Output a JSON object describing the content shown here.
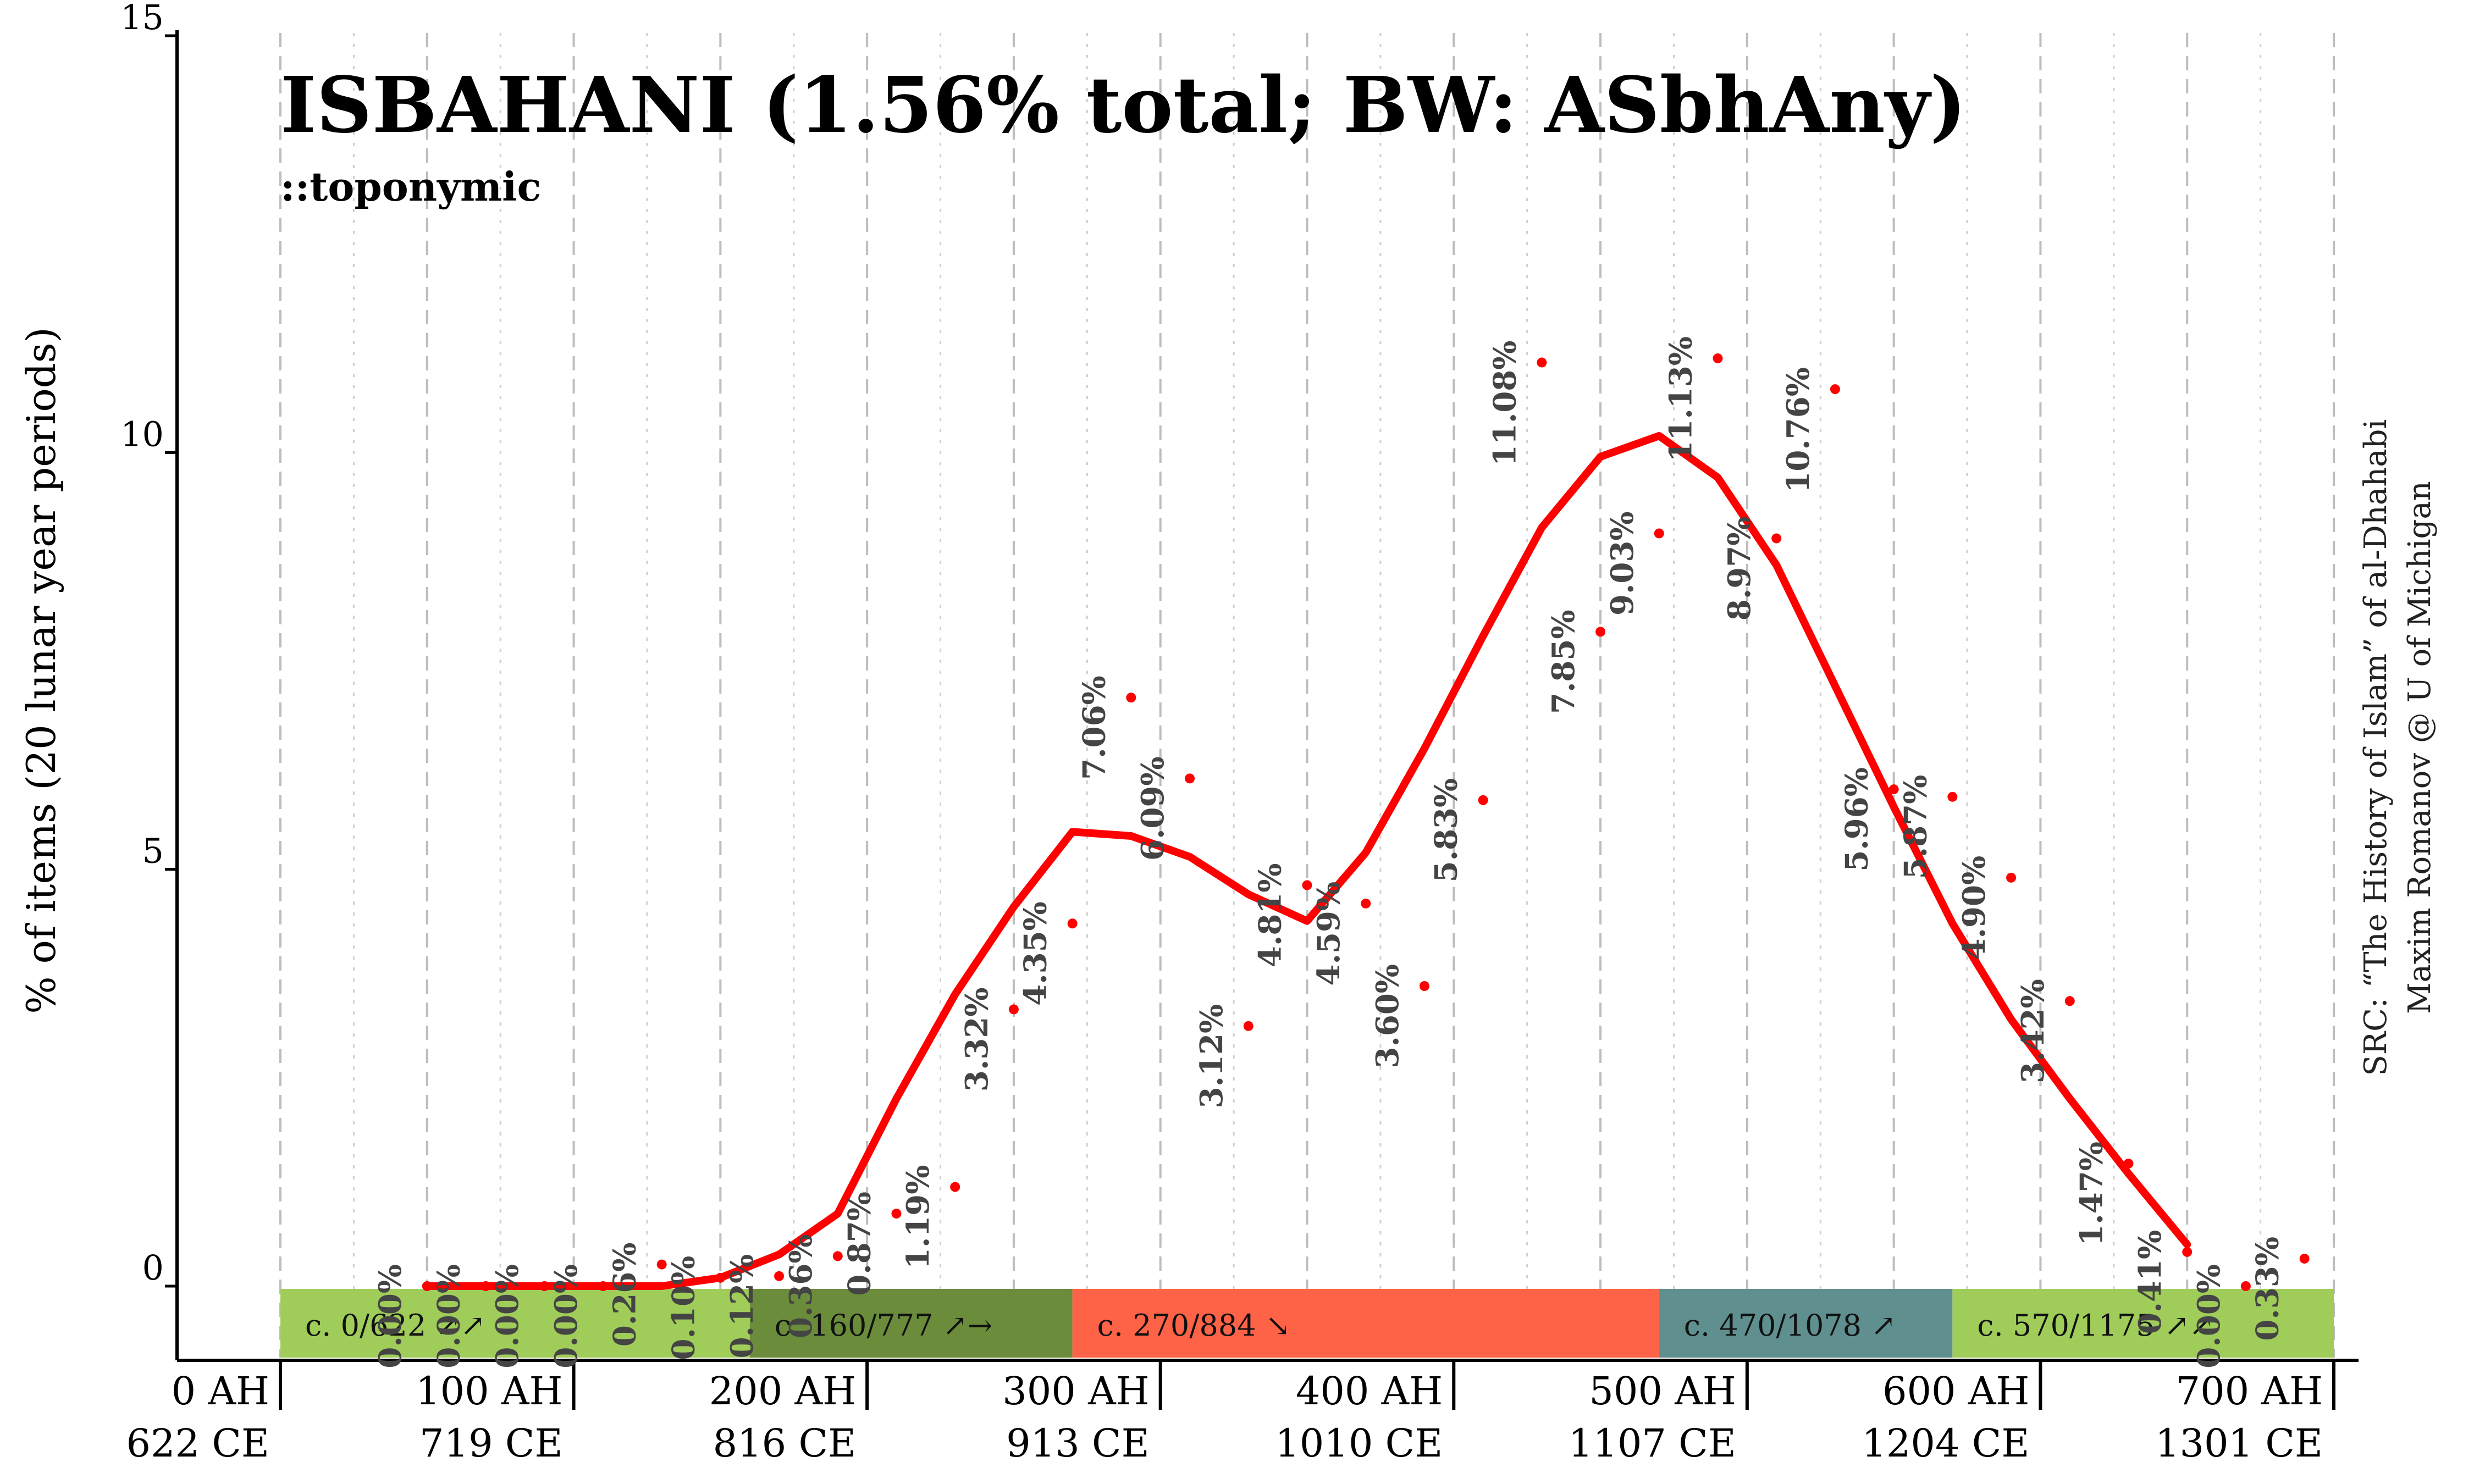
{
  "chart_data": {
    "type": "line",
    "title": "ISBAHANI (1.56% total; BW: ASbhAny)",
    "subtitle": "::toponymic",
    "ylabel": "% of items (20 lunar year periods)",
    "ylim": [
      0,
      15
    ],
    "xlim": [
      0,
      700
    ],
    "y_ticks": [
      {
        "value": 0,
        "label": "0"
      },
      {
        "value": 5,
        "label": "5"
      },
      {
        "value": 10,
        "label": "10"
      },
      {
        "value": 15,
        "label": "15"
      }
    ],
    "x_ticks": [
      {
        "value": 0,
        "ah": "0 AH",
        "ce": "622 CE"
      },
      {
        "value": 100,
        "ah": "100 AH",
        "ce": "719 CE"
      },
      {
        "value": 200,
        "ah": "200 AH",
        "ce": "816 CE"
      },
      {
        "value": 300,
        "ah": "300 AH",
        "ce": "913 CE"
      },
      {
        "value": 400,
        "ah": "400 AH",
        "ce": "1010 CE"
      },
      {
        "value": 500,
        "ah": "500 AH",
        "ce": "1107 CE"
      },
      {
        "value": 600,
        "ah": "600 AH",
        "ce": "1204 CE"
      },
      {
        "value": 700,
        "ah": "700 AH",
        "ce": "1301 CE"
      }
    ],
    "points": [
      {
        "x": 50,
        "y": 0.0,
        "label": "0.00%"
      },
      {
        "x": 70,
        "y": 0.0,
        "label": "0.00%"
      },
      {
        "x": 90,
        "y": 0.0,
        "label": "0.00%"
      },
      {
        "x": 110,
        "y": 0.0,
        "label": "0.00%"
      },
      {
        "x": 130,
        "y": 0.26,
        "label": "0.26%"
      },
      {
        "x": 150,
        "y": 0.1,
        "label": "0.10%"
      },
      {
        "x": 170,
        "y": 0.12,
        "label": "0.12%"
      },
      {
        "x": 190,
        "y": 0.36,
        "label": "0.36%"
      },
      {
        "x": 210,
        "y": 0.87,
        "label": "0.87%"
      },
      {
        "x": 230,
        "y": 1.19,
        "label": "1.19%"
      },
      {
        "x": 250,
        "y": 3.32,
        "label": "3.32%"
      },
      {
        "x": 270,
        "y": 4.35,
        "label": "4.35%"
      },
      {
        "x": 290,
        "y": 7.06,
        "label": "7.06%"
      },
      {
        "x": 310,
        "y": 6.09,
        "label": "6.09%"
      },
      {
        "x": 330,
        "y": 3.12,
        "label": "3.12%"
      },
      {
        "x": 350,
        "y": 4.81,
        "label": "4.81%"
      },
      {
        "x": 370,
        "y": 4.59,
        "label": "4.59%"
      },
      {
        "x": 390,
        "y": 3.6,
        "label": "3.60%"
      },
      {
        "x": 410,
        "y": 5.83,
        "label": "5.83%"
      },
      {
        "x": 430,
        "y": 11.08,
        "label": "11.08%"
      },
      {
        "x": 450,
        "y": 7.85,
        "label": "7.85%"
      },
      {
        "x": 470,
        "y": 9.03,
        "label": "9.03%"
      },
      {
        "x": 490,
        "y": 11.13,
        "label": "11.13%"
      },
      {
        "x": 510,
        "y": 8.97,
        "label": "8.97%"
      },
      {
        "x": 530,
        "y": 10.76,
        "label": "10.76%"
      },
      {
        "x": 550,
        "y": 5.96,
        "label": "5.96%"
      },
      {
        "x": 570,
        "y": 5.87,
        "label": "5.87%"
      },
      {
        "x": 590,
        "y": 4.9,
        "label": "4.90%"
      },
      {
        "x": 610,
        "y": 3.42,
        "label": "3.42%"
      },
      {
        "x": 630,
        "y": 1.47,
        "label": "1.47%"
      },
      {
        "x": 650,
        "y": 0.41,
        "label": "0.41%"
      },
      {
        "x": 670,
        "y": 0.0,
        "label": "0.00%"
      },
      {
        "x": 690,
        "y": 0.33,
        "label": "0.33%"
      }
    ],
    "smoothed": [
      {
        "x": 50,
        "y": 0.0
      },
      {
        "x": 70,
        "y": 0.0
      },
      {
        "x": 90,
        "y": 0.0
      },
      {
        "x": 110,
        "y": 0.0
      },
      {
        "x": 130,
        "y": 0.0
      },
      {
        "x": 150,
        "y": 0.1
      },
      {
        "x": 170,
        "y": 0.38
      },
      {
        "x": 190,
        "y": 0.87
      },
      {
        "x": 210,
        "y": 2.25
      },
      {
        "x": 230,
        "y": 3.5
      },
      {
        "x": 250,
        "y": 4.55
      },
      {
        "x": 270,
        "y": 5.45
      },
      {
        "x": 290,
        "y": 5.4
      },
      {
        "x": 310,
        "y": 5.15
      },
      {
        "x": 330,
        "y": 4.7
      },
      {
        "x": 350,
        "y": 4.38
      },
      {
        "x": 370,
        "y": 5.2
      },
      {
        "x": 390,
        "y": 6.45
      },
      {
        "x": 410,
        "y": 7.8
      },
      {
        "x": 430,
        "y": 9.1
      },
      {
        "x": 450,
        "y": 9.95
      },
      {
        "x": 470,
        "y": 10.2
      },
      {
        "x": 490,
        "y": 9.7
      },
      {
        "x": 510,
        "y": 8.65
      },
      {
        "x": 530,
        "y": 7.2
      },
      {
        "x": 550,
        "y": 5.75
      },
      {
        "x": 570,
        "y": 4.35
      },
      {
        "x": 590,
        "y": 3.2
      },
      {
        "x": 610,
        "y": 2.25
      },
      {
        "x": 630,
        "y": 1.35
      },
      {
        "x": 650,
        "y": 0.5
      }
    ],
    "periods": [
      {
        "start": 0,
        "end": 160,
        "label": "c. 0/622 ↗↗",
        "color": "#a0cd5a"
      },
      {
        "start": 160,
        "end": 270,
        "label": "c. 160/777 ↗→",
        "color": "#6b8c3a"
      },
      {
        "start": 270,
        "end": 470,
        "label": "c. 270/884 ↘",
        "color": "#ff6347"
      },
      {
        "start": 470,
        "end": 570,
        "label": "c. 470/1078 ↗",
        "color": "#5f8f8f"
      },
      {
        "start": 570,
        "end": 700,
        "label": "c. 570/1175 ↗↗",
        "color": "#a0cd5a"
      }
    ],
    "line_color": "#ff0000",
    "point_color": "#ff0000",
    "grid": true
  },
  "source": {
    "line1": "SRC: “The History of Islam” of al-Dhahabi",
    "line2": "Maxim Romanov @ U of Michigan"
  }
}
